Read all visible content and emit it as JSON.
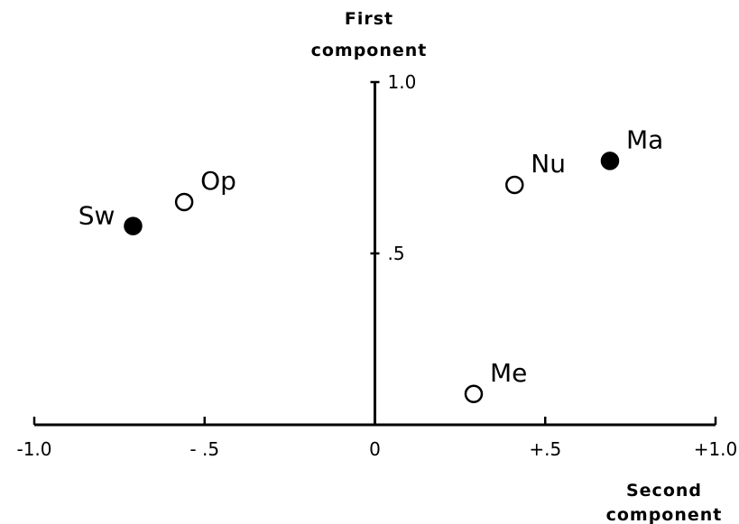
{
  "chart_data": {
    "type": "scatter",
    "title": "",
    "xlabel_lines": [
      "Second",
      "component"
    ],
    "ylabel_lines": [
      "First",
      "component"
    ],
    "xlim": [
      -1.0,
      1.0
    ],
    "ylim": [
      0.0,
      1.0
    ],
    "x_ticks": [
      {
        "value": -1.0,
        "label": "-1.0"
      },
      {
        "value": -0.5,
        "label": "- .5"
      },
      {
        "value": 0.0,
        "label": "0"
      },
      {
        "value": 0.5,
        "label": "+.5"
      },
      {
        "value": 1.0,
        "label": "+1.0"
      }
    ],
    "y_ticks": [
      {
        "value": 0.5,
        "label": ".5"
      },
      {
        "value": 1.0,
        "label": "1.0"
      }
    ],
    "points": [
      {
        "label": "Sw",
        "x": -0.71,
        "y": 0.58,
        "filled": true
      },
      {
        "label": "Op",
        "x": -0.56,
        "y": 0.65,
        "filled": false
      },
      {
        "label": "Nu",
        "x": 0.41,
        "y": 0.7,
        "filled": false
      },
      {
        "label": "Ma",
        "x": 0.69,
        "y": 0.77,
        "filled": true
      },
      {
        "label": "Me",
        "x": 0.29,
        "y": 0.09,
        "filled": false
      }
    ],
    "grid": false,
    "legend": "none"
  }
}
